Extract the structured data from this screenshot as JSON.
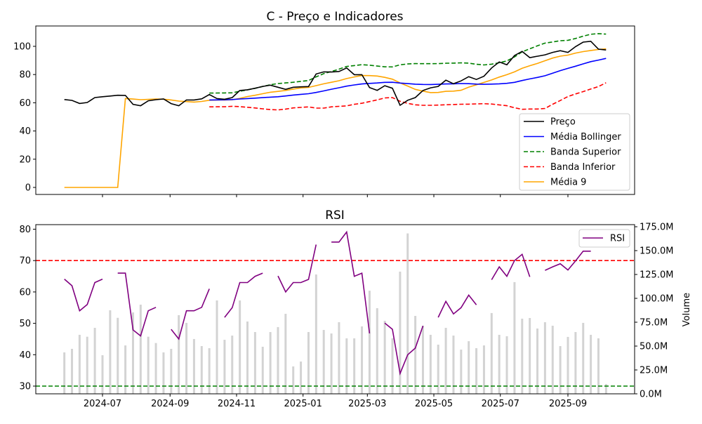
{
  "chart_data": [
    {
      "type": "line",
      "title": "C - Preço e Indicadores",
      "x_start": "2024-05-27",
      "x_step_days": 7,
      "xlim": [
        "2024-05-02",
        "2025-10-31"
      ],
      "ylim": [
        -5,
        114.4
      ],
      "y_ticks": [
        0,
        20,
        40,
        60,
        80,
        100
      ],
      "x_ticks": [
        "2024-07",
        "2024-09",
        "2024-11",
        "2025-01",
        "2025-03",
        "2025-05",
        "2025-07",
        "2025-09"
      ],
      "legend_position": "lower-right",
      "price": [
        62.3,
        61.7,
        59.5,
        60.2,
        63.7,
        64.3,
        64.8,
        65.3,
        65.2,
        58.9,
        57.9,
        61.4,
        62.2,
        62.7,
        59.4,
        57.9,
        62.0,
        62.0,
        62.8,
        65.8,
        63.0,
        62.5,
        63.7,
        68.7,
        69.2,
        70.3,
        71.6,
        72.5,
        71.0,
        69.5,
        71.0,
        71.3,
        71.5,
        80.4,
        81.9,
        81.8,
        82.2,
        84.7,
        79.9,
        79.9,
        70.8,
        68.8,
        72.1,
        70.3,
        58.2,
        61.8,
        63.7,
        68.7,
        70.6,
        71.6,
        76.0,
        73.5,
        75.5,
        78.5,
        76.5,
        78.8,
        84.7,
        88.9,
        86.9,
        93.5,
        96.4,
        92.0,
        93.0,
        94.0,
        95.7,
        96.9,
        95.7,
        99.8,
        103.0,
        103.6,
        98.0,
        97.4
      ],
      "bollinger_window": 20,
      "bollinger_k": 2,
      "ma_window": 9,
      "series": [
        {
          "key": "price",
          "name": "Preço",
          "color": "#000000",
          "dash": false
        },
        {
          "key": "bb_mid",
          "name": "Média Bollinger",
          "color": "#0000ff",
          "dash": false
        },
        {
          "key": "bb_up",
          "name": "Banda Superior",
          "color": "#008000",
          "dash": true
        },
        {
          "key": "bb_low",
          "name": "Banda Inferior",
          "color": "#ff0000",
          "dash": true
        },
        {
          "key": "ma9",
          "name": "Média 9",
          "color": "#ffa500",
          "dash": false
        }
      ]
    },
    {
      "type": "line",
      "title": "RSI",
      "ylim": [
        27.5,
        81.5
      ],
      "y_ticks": [
        30,
        40,
        50,
        60,
        70,
        80
      ],
      "overbought": 70,
      "oversold": 30,
      "legend": "RSI",
      "legend_position": "upper-right",
      "rsi_color": "#800080",
      "rsi": [
        64.1,
        62.0,
        54.0,
        56.0,
        63.0,
        64.1,
        null,
        66.0,
        66.0,
        47.9,
        46.0,
        54.0,
        55.1,
        null,
        48.1,
        45.0,
        54.0,
        54.0,
        55.1,
        61.0,
        null,
        51.9,
        55.0,
        63.0,
        63.0,
        65.0,
        66.0,
        null,
        65.1,
        60.0,
        63.0,
        63.0,
        64.0,
        75.1,
        null,
        75.9,
        75.9,
        79.1,
        65.0,
        66.0,
        46.8,
        null,
        50.1,
        48.1,
        34.0,
        40.0,
        42.1,
        49.2,
        null,
        51.9,
        57.0,
        53.0,
        55.0,
        59.0,
        55.9,
        null,
        63.9,
        68.0,
        65.0,
        70.0,
        72.0,
        64.8,
        null,
        66.9,
        68.0,
        69.0,
        67.0,
        69.9,
        73.0,
        73.0,
        null,
        null
      ],
      "volume_label": "Volume",
      "volume_ylim": [
        0,
        177
      ],
      "volume_ticks": [
        "0.0M",
        "25.0M",
        "50.0M",
        "75.0M",
        "100.0M",
        "125.0M",
        "150.0M",
        "175.0M"
      ],
      "volume_tick_values": [
        0,
        25,
        50,
        75,
        100,
        125,
        150,
        175
      ],
      "volume_color": "#d3d3d3",
      "volume_millions": [
        43.4,
        47.1,
        61.8,
        59.8,
        69.1,
        40.4,
        87.5,
        79.6,
        50.7,
        85.3,
        93.4,
        59.8,
        53.2,
        43.4,
        47.1,
        82.4,
        74.3,
        57.4,
        50.0,
        47.8,
        97.8,
        56.6,
        61.0,
        97.8,
        75.7,
        64.7,
        49.3,
        64.7,
        69.9,
        83.8,
        28.7,
        33.8,
        64.7,
        125.0,
        66.9,
        63.2,
        75.0,
        58.1,
        58.1,
        70.6,
        108.0,
        89.7,
        76.5,
        58.1,
        128.0,
        168.0,
        81.6,
        71.3,
        61.8,
        51.5,
        69.1,
        61.0,
        46.3,
        55.1,
        47.8,
        50.7,
        84.6,
        61.8,
        60.3,
        117.0,
        78.7,
        79.4,
        68.4,
        75.0,
        71.3,
        50.0,
        59.6,
        64.7,
        74.3,
        61.8,
        58.1,
        10.3
      ]
    }
  ]
}
